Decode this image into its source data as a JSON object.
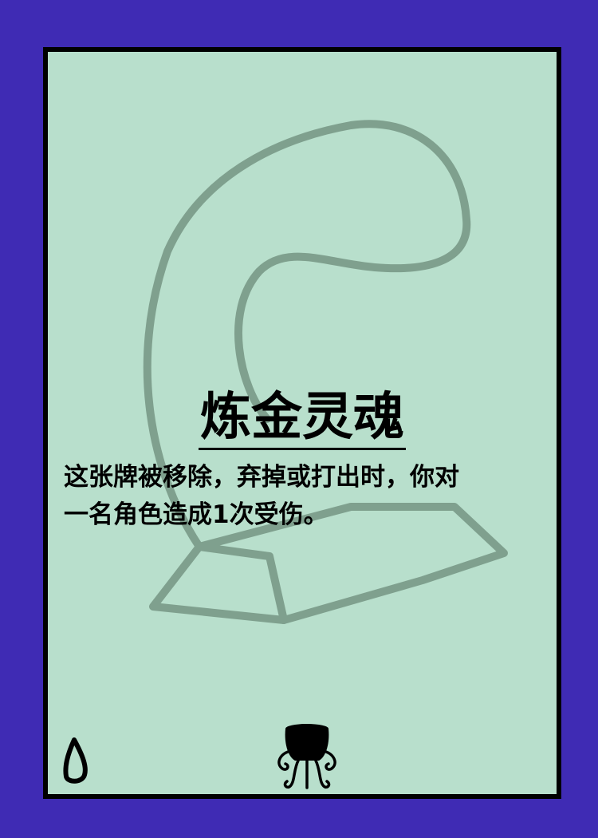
{
  "card": {
    "name": "炼金灵魂",
    "description_lines": [
      "这张牌被移除，弃掉或打出时，你对",
      "一名角色造成1次受伤。"
    ],
    "art_icon": "alchemy-spirit-smoke-bar",
    "bottom_left_icon": "drop-icon",
    "bottom_center_icon": "cauldron-icon"
  },
  "colors": {
    "background": "#3f2bb4",
    "card_face": "#b8dfcc",
    "border": "#000000",
    "art_stroke": "#7fa08e",
    "text": "#000000"
  }
}
